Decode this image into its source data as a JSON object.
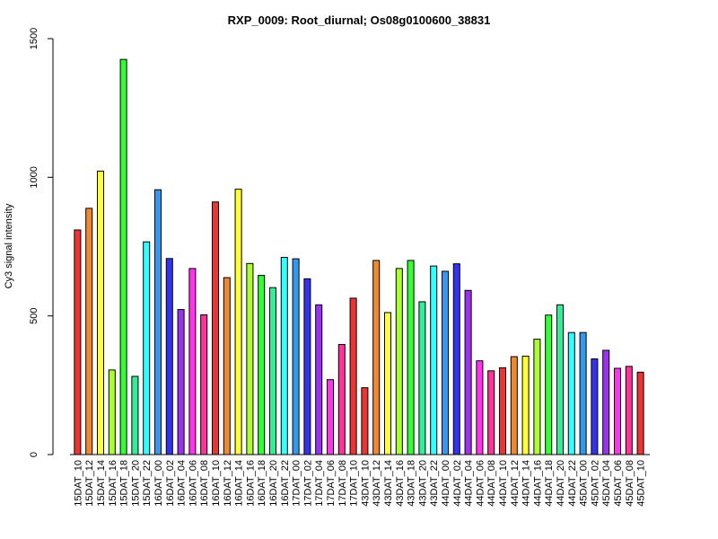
{
  "chart_data": {
    "type": "bar",
    "title": "RXP_0009: Root_diurnal; Os08g0100600_38831",
    "xlabel": "",
    "ylabel": "Cy3 signal intensity",
    "ylim": [
      0,
      1500
    ],
    "yticks": [
      0,
      500,
      1000,
      1500
    ],
    "grid": false,
    "legend": "none",
    "categories": [
      "15DAT_10",
      "15DAT_12",
      "15DAT_14",
      "15DAT_16",
      "15DAT_18",
      "15DAT_20",
      "15DAT_22",
      "16DAT_00",
      "16DAT_02",
      "16DAT_04",
      "16DAT_06",
      "16DAT_08",
      "16DAT_10",
      "16DAT_12",
      "16DAT_14",
      "16DAT_16",
      "16DAT_18",
      "16DAT_20",
      "16DAT_22",
      "17DAT_00",
      "17DAT_02",
      "17DAT_04",
      "17DAT_06",
      "17DAT_08",
      "17DAT_10",
      "43DAT_10",
      "43DAT_12",
      "43DAT_14",
      "43DAT_16",
      "43DAT_18",
      "43DAT_20",
      "43DAT_22",
      "44DAT_00",
      "44DAT_02",
      "44DAT_04",
      "44DAT_06",
      "44DAT_08",
      "44DAT_10",
      "44DAT_12",
      "44DAT_14",
      "44DAT_16",
      "44DAT_18",
      "44DAT_20",
      "44DAT_22",
      "45DAT_00",
      "45DAT_02",
      "45DAT_04",
      "45DAT_06",
      "45DAT_08",
      "45DAT_10"
    ],
    "values": [
      810,
      888,
      1022,
      305,
      1425,
      282,
      767,
      955,
      707,
      523,
      671,
      504,
      911,
      638,
      957,
      689,
      646,
      602,
      711,
      706,
      634,
      540,
      270,
      397,
      564,
      241,
      700,
      512,
      671,
      700,
      551,
      680,
      661,
      688,
      592,
      338,
      302,
      313,
      353,
      355,
      416,
      503,
      540,
      440,
      440,
      345,
      376,
      311,
      318,
      297
    ],
    "colors": [
      "#ee3333",
      "#ee8833",
      "#ffff33",
      "#aaff33",
      "#33ff33",
      "#33ee99",
      "#33ffff",
      "#3399ee",
      "#3333ee",
      "#9933ee",
      "#ff33ee",
      "#ff3399",
      "#ee3333",
      "#ee8833",
      "#ffff33",
      "#aaff33",
      "#33ff33",
      "#33ee99",
      "#33ffff",
      "#3399ee",
      "#3333ee",
      "#9933ee",
      "#ff33ee",
      "#ff3399",
      "#ee3333",
      "#ee3333",
      "#ee8833",
      "#ffff33",
      "#aaff33",
      "#33ff33",
      "#33ee99",
      "#33ffff",
      "#3399ee",
      "#3333ee",
      "#9933ee",
      "#ff33ee",
      "#ff3399",
      "#ee3333",
      "#ee8833",
      "#ffff33",
      "#aaff33",
      "#33ff33",
      "#33ee99",
      "#33ffff",
      "#3399ee",
      "#3333ee",
      "#9933ee",
      "#ff33ee",
      "#ff3399",
      "#ee3333"
    ]
  }
}
